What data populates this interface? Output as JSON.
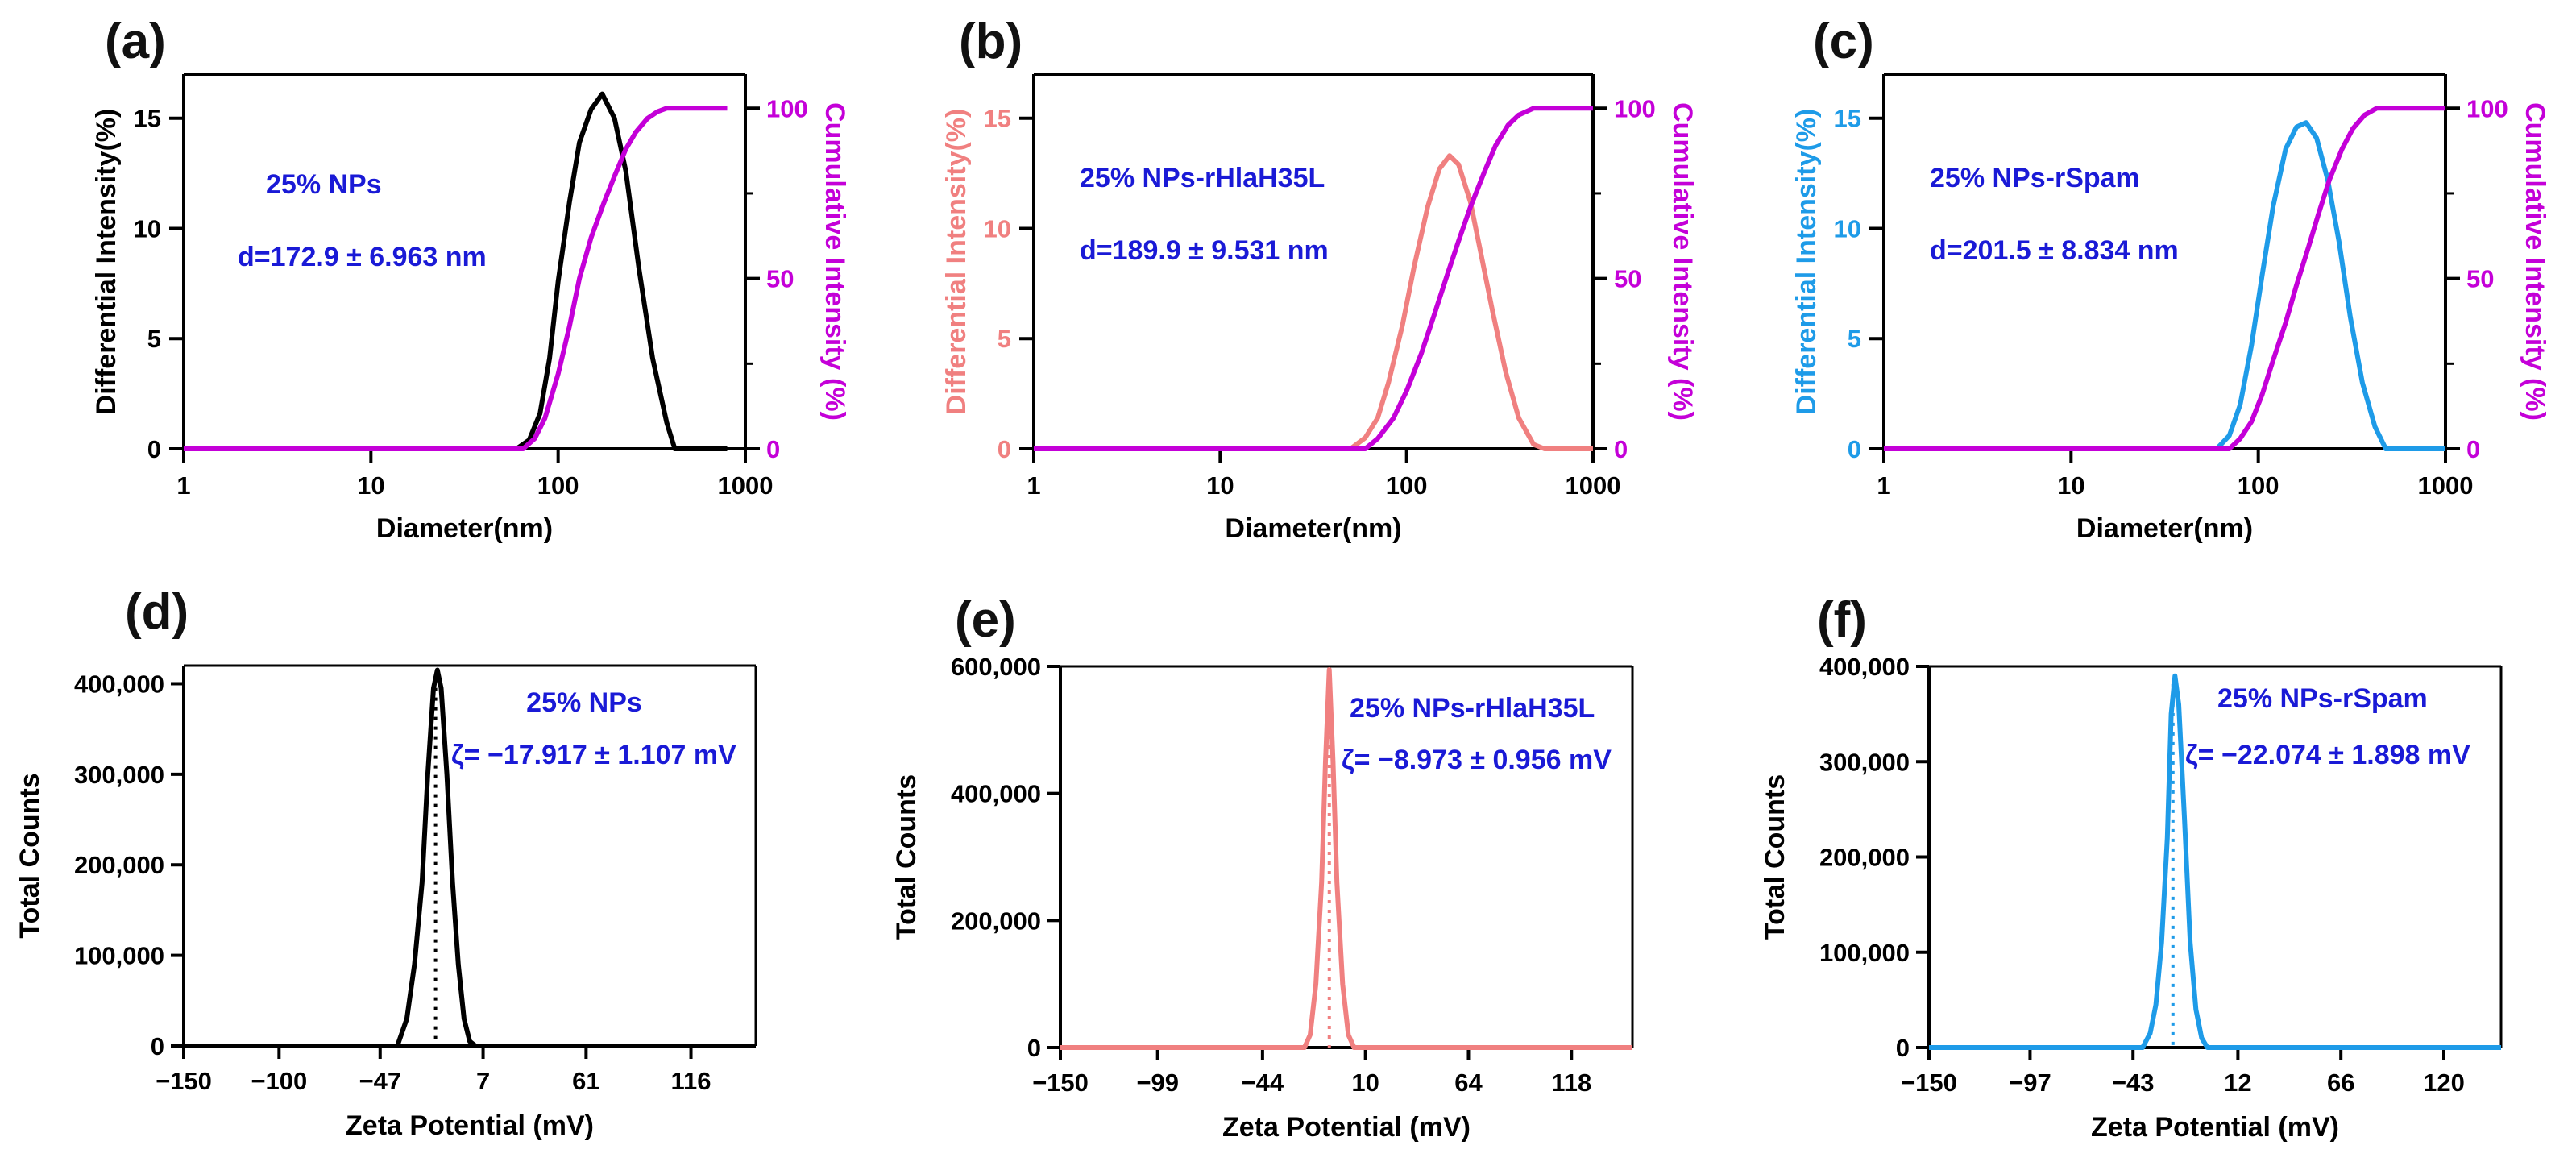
{
  "figure": {
    "panels": [
      {
        "label": "(a)"
      },
      {
        "label": "(b)"
      },
      {
        "label": "(c)"
      },
      {
        "label": "(d)"
      },
      {
        "label": "(e)"
      },
      {
        "label": "(f)"
      }
    ]
  },
  "chart_data": [
    {
      "panel": "(a)",
      "type": "line",
      "xlabel": "Diameter(nm)",
      "ylabel": "Differential Intensity(%)",
      "y2label": "Cumulative Intensity (%)",
      "x_scale": "log",
      "xlim": [
        1,
        1000
      ],
      "ylim": [
        0,
        17
      ],
      "y2lim": [
        0,
        110
      ],
      "xticks": [
        "1",
        "10",
        "100",
        "1000"
      ],
      "yticks": [
        "0",
        "5",
        "10",
        "15"
      ],
      "y2ticks": [
        "0",
        "50",
        "100"
      ],
      "colors": {
        "differential": "#000000",
        "cumulative": "#c400d8",
        "annotation": "#1a1ad6"
      },
      "annotations": [
        "25% NPs",
        "d=172.9 ± 6.963 nm"
      ],
      "series": [
        {
          "role": "differential",
          "axis": "left",
          "x": [
            1,
            60,
            70,
            80,
            90,
            100,
            115,
            130,
            150,
            172,
            200,
            230,
            270,
            320,
            380,
            420,
            800
          ],
          "y": [
            0,
            0,
            0.4,
            1.6,
            4.1,
            7.6,
            11.2,
            13.9,
            15.4,
            16.1,
            15.0,
            12.6,
            8.2,
            4.1,
            1.2,
            0,
            0
          ]
        },
        {
          "role": "cumulative",
          "axis": "right",
          "x": [
            1,
            65,
            75,
            85,
            100,
            115,
            130,
            150,
            175,
            200,
            230,
            260,
            300,
            340,
            380,
            450,
            800
          ],
          "y": [
            0,
            0,
            3,
            9,
            22,
            36,
            50,
            62,
            72,
            80,
            88,
            93,
            97,
            99,
            100,
            100,
            100
          ]
        }
      ]
    },
    {
      "panel": "(b)",
      "type": "line",
      "xlabel": "Diameter(nm)",
      "ylabel": "Differential Intensity(%)",
      "y2label": "Cumulative Intensity (%)",
      "x_scale": "log",
      "xlim": [
        1,
        1000
      ],
      "ylim": [
        0,
        17
      ],
      "y2lim": [
        0,
        110
      ],
      "xticks": [
        "1",
        "10",
        "100",
        "1000"
      ],
      "yticks": [
        "0",
        "5",
        "10",
        "15"
      ],
      "y2ticks": [
        "0",
        "50",
        "100"
      ],
      "colors": {
        "differential": "#f08080",
        "cumulative": "#c400d8",
        "annotation": "#1a1ad6"
      },
      "annotations": [
        "25% NPs-rHlaH35L",
        "d=189.9 ± 9.531 nm"
      ],
      "series": [
        {
          "role": "differential",
          "axis": "left",
          "x": [
            1,
            50,
            60,
            70,
            80,
            95,
            110,
            130,
            150,
            170,
            190,
            220,
            250,
            290,
            340,
            400,
            480,
            550,
            1000
          ],
          "y": [
            0,
            0,
            0.5,
            1.4,
            3.0,
            5.6,
            8.3,
            11.0,
            12.7,
            13.3,
            12.9,
            11.2,
            8.9,
            6.2,
            3.5,
            1.4,
            0.2,
            0,
            0
          ]
        },
        {
          "role": "cumulative",
          "axis": "right",
          "x": [
            1,
            60,
            70,
            85,
            100,
            120,
            140,
            165,
            190,
            220,
            260,
            300,
            350,
            400,
            480,
            600,
            1000
          ],
          "y": [
            0,
            0,
            3,
            9,
            17,
            28,
            39,
            51,
            61,
            71,
            81,
            89,
            95,
            98,
            100,
            100,
            100
          ]
        }
      ]
    },
    {
      "panel": "(c)",
      "type": "line",
      "xlabel": "Diameter(nm)",
      "ylabel": "Differential Intensity(%)",
      "y2label": "Cumulative Intensity (%)",
      "x_scale": "log",
      "xlim": [
        1,
        1000
      ],
      "ylim": [
        0,
        17
      ],
      "y2lim": [
        0,
        110
      ],
      "xticks": [
        "1",
        "10",
        "100",
        "1000"
      ],
      "yticks": [
        "0",
        "5",
        "10",
        "15"
      ],
      "y2ticks": [
        "0",
        "50",
        "100"
      ],
      "colors": {
        "differential": "#1e9be8",
        "cumulative": "#c400d8",
        "annotation": "#1a1ad6"
      },
      "annotations": [
        "25% NPs-rSpam",
        "d=201.5 ± 8.834 nm"
      ],
      "series": [
        {
          "role": "differential",
          "axis": "left",
          "x": [
            1,
            60,
            70,
            80,
            92,
            105,
            120,
            140,
            160,
            180,
            205,
            235,
            270,
            310,
            360,
            420,
            480,
            1000
          ],
          "y": [
            0,
            0,
            0.6,
            2.0,
            4.7,
            7.9,
            11.0,
            13.6,
            14.6,
            14.8,
            14.1,
            12.2,
            9.4,
            6.0,
            3.0,
            1.0,
            0,
            0
          ]
        },
        {
          "role": "cumulative",
          "axis": "right",
          "x": [
            1,
            70,
            80,
            92,
            105,
            120,
            140,
            160,
            185,
            210,
            240,
            280,
            320,
            370,
            430,
            550,
            1000
          ],
          "y": [
            0,
            0,
            3,
            8,
            16,
            26,
            37,
            48,
            59,
            69,
            79,
            88,
            94,
            98,
            100,
            100,
            100
          ]
        }
      ]
    },
    {
      "panel": "(d)",
      "type": "line",
      "xlabel": "Zeta Potential (mV)",
      "ylabel": "Total Counts",
      "xlim": [
        -150,
        150
      ],
      "ylim": [
        0,
        420000
      ],
      "xticks": [
        -150,
        -100,
        -47,
        7,
        61,
        116
      ],
      "xtick_labels": [
        "−150",
        "−100",
        "−47",
        "7",
        "61",
        "116"
      ],
      "yticks": [
        0,
        100000,
        200000,
        300000,
        400000
      ],
      "ytick_labels": [
        "0",
        "100,000",
        "200,000",
        "300,000",
        "400,000"
      ],
      "colors": {
        "line": "#000000",
        "marker": "#000000",
        "annotation": "#1a1ad6"
      },
      "annotations": [
        "25% NPs",
        "ζ= −17.917 ± 1.107 mV"
      ],
      "mean_marker": -17.917,
      "series": [
        {
          "x": [
            -150,
            -38,
            -33,
            -29,
            -25,
            -22,
            -19,
            -17,
            -15,
            -12,
            -9,
            -6,
            -3,
            0,
            3,
            150
          ],
          "y": [
            0,
            0,
            30000,
            90000,
            180000,
            300000,
            395000,
            415000,
            395000,
            300000,
            180000,
            90000,
            30000,
            5000,
            0,
            0
          ]
        }
      ]
    },
    {
      "panel": "(e)",
      "type": "line",
      "xlabel": "Zeta Potential (mV)",
      "ylabel": "Total Counts",
      "xlim": [
        -150,
        150
      ],
      "ylim": [
        0,
        600000
      ],
      "xticks": [
        -150,
        -99,
        -44,
        10,
        64,
        118
      ],
      "xtick_labels": [
        "−150",
        "−99",
        "−44",
        "10",
        "64",
        "118"
      ],
      "yticks": [
        0,
        200000,
        400000,
        600000
      ],
      "ytick_labels": [
        "0",
        "200,000",
        "400,000",
        "600,000"
      ],
      "colors": {
        "line": "#f08080",
        "marker": "#f08080",
        "annotation": "#1a1ad6"
      },
      "annotations": [
        "25% NPs-rHlaH35L",
        "ζ= −8.973 ± 0.956 mV"
      ],
      "mean_marker": -8.973,
      "series": [
        {
          "x": [
            -150,
            -22,
            -19,
            -16,
            -13,
            -11,
            -9,
            -7,
            -5,
            -2,
            1,
            4,
            150
          ],
          "y": [
            0,
            0,
            20000,
            100000,
            260000,
            450000,
            595000,
            450000,
            260000,
            100000,
            20000,
            0,
            0
          ]
        }
      ]
    },
    {
      "panel": "(f)",
      "type": "line",
      "xlabel": "Zeta Potential (mV)",
      "ylabel": "Total Counts",
      "xlim": [
        -150,
        150
      ],
      "ylim": [
        0,
        400000
      ],
      "xticks": [
        -150,
        -97,
        -43,
        12,
        66,
        120
      ],
      "xtick_labels": [
        "−150",
        "−97",
        "−43",
        "12",
        "66",
        "120"
      ],
      "yticks": [
        0,
        100000,
        200000,
        300000,
        400000
      ],
      "ytick_labels": [
        "0",
        "100,000",
        "200,000",
        "300,000",
        "400,000"
      ],
      "colors": {
        "line": "#1e9be8",
        "marker": "#1e9be8",
        "annotation": "#1a1ad6"
      },
      "annotations": [
        "25% NPs-rSpam",
        "ζ= −22.074 ± 1.898 mV"
      ],
      "mean_marker": -22.074,
      "series": [
        {
          "x": [
            -150,
            -38,
            -34,
            -31,
            -28,
            -25,
            -23,
            -21,
            -19,
            -16,
            -13,
            -10,
            -7,
            -4,
            150
          ],
          "y": [
            0,
            0,
            15000,
            45000,
            110000,
            220000,
            350000,
            390000,
            360000,
            240000,
            110000,
            40000,
            10000,
            0,
            0
          ]
        }
      ]
    }
  ]
}
